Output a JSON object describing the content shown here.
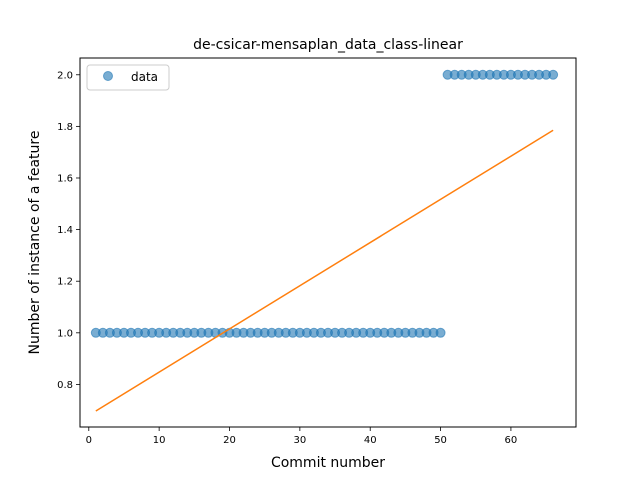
{
  "chart_data": {
    "type": "scatter",
    "title": "de-csicar-mensaplan_data_class-linear",
    "xlabel": "Commit number",
    "ylabel": "Number of instance of a feature",
    "xlim": [
      -1.25,
      69.25
    ],
    "ylim": [
      0.635,
      2.065
    ],
    "xticks": [
      0,
      10,
      20,
      30,
      40,
      50,
      60
    ],
    "yticks": [
      0.8,
      1.0,
      1.2,
      1.4,
      1.6,
      1.8,
      2.0
    ],
    "xtick_labels": [
      "0",
      "10",
      "20",
      "30",
      "40",
      "50",
      "60"
    ],
    "ytick_labels": [
      "0.8",
      "1.0",
      "1.2",
      "1.4",
      "1.6",
      "1.8",
      "2.0"
    ],
    "grid": false,
    "legend": {
      "position": "top-left",
      "entries": [
        "data"
      ]
    },
    "series": [
      {
        "name": "data",
        "kind": "scatter",
        "color": "#1f77b4",
        "x": [
          1,
          2,
          3,
          4,
          5,
          6,
          7,
          8,
          9,
          10,
          11,
          12,
          13,
          14,
          15,
          16,
          17,
          18,
          19,
          20,
          21,
          22,
          23,
          24,
          25,
          26,
          27,
          28,
          29,
          30,
          31,
          32,
          33,
          34,
          35,
          36,
          37,
          38,
          39,
          40,
          41,
          42,
          43,
          44,
          45,
          46,
          47,
          48,
          49,
          50,
          51,
          52,
          53,
          54,
          55,
          56,
          57,
          58,
          59,
          60,
          61,
          62,
          63,
          64,
          65,
          66
        ],
        "y": [
          1,
          1,
          1,
          1,
          1,
          1,
          1,
          1,
          1,
          1,
          1,
          1,
          1,
          1,
          1,
          1,
          1,
          1,
          1,
          1,
          1,
          1,
          1,
          1,
          1,
          1,
          1,
          1,
          1,
          1,
          1,
          1,
          1,
          1,
          1,
          1,
          1,
          1,
          1,
          1,
          1,
          1,
          1,
          1,
          1,
          1,
          1,
          1,
          1,
          1,
          2,
          2,
          2,
          2,
          2,
          2,
          2,
          2,
          2,
          2,
          2,
          2,
          2,
          2,
          2,
          2
        ]
      },
      {
        "kind": "line",
        "color": "#ff7f0e",
        "x": [
          1,
          66
        ],
        "y": [
          0.697,
          1.785
        ]
      }
    ]
  }
}
